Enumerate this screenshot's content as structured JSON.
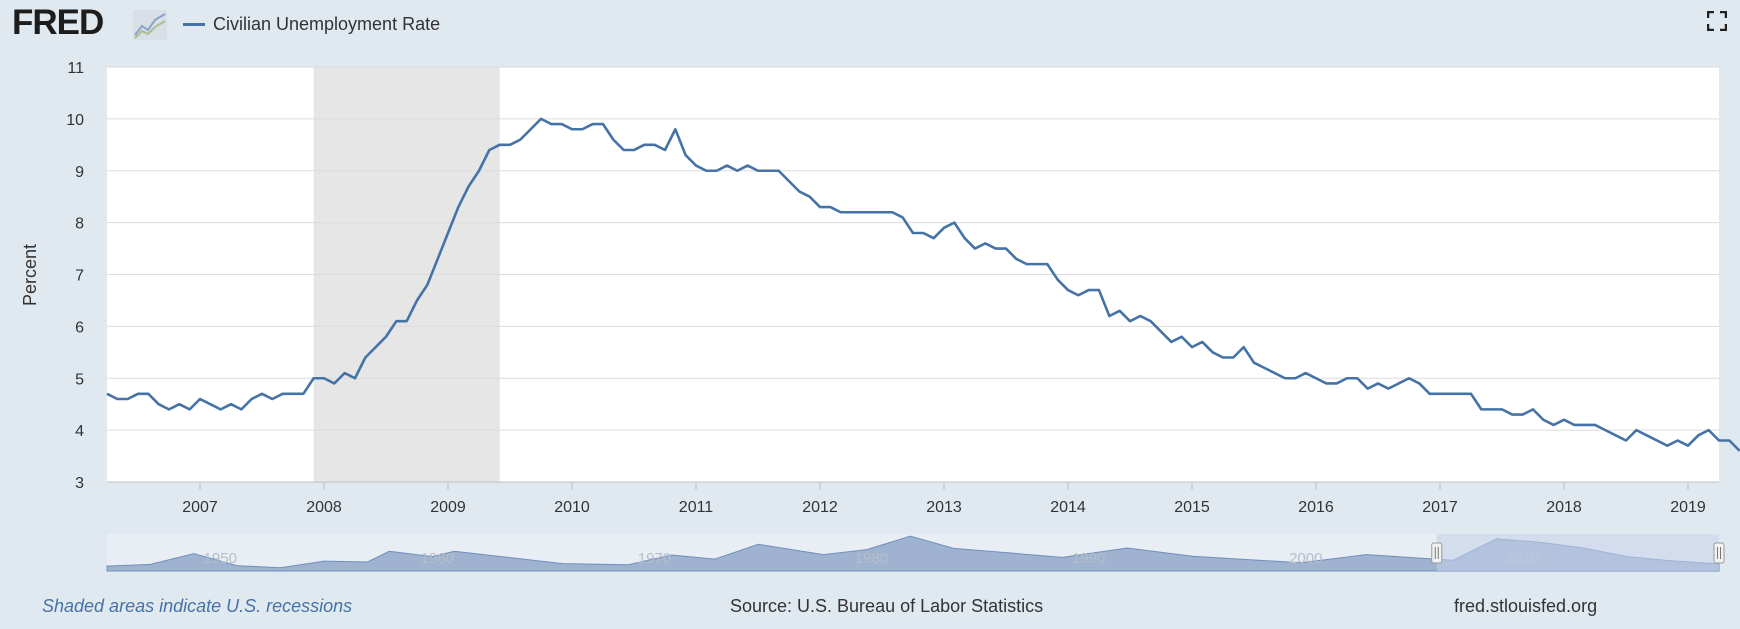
{
  "header": {
    "logo_text": "FRED",
    "legend_label": "Civilian Unemployment Rate"
  },
  "icons": {
    "logo": "fred-graph-icon",
    "fullscreen": "fullscreen-icon"
  },
  "colors": {
    "background": "#e1e9f0",
    "series_line": "#4572a7",
    "recession_shade": "#e6e6e6",
    "navigator_fill": "#9fb3d1",
    "navigator_selection": "#c2cfe8"
  },
  "footer": {
    "note": "Shaded areas indicate U.S. recessions",
    "source": "Source: U.S. Bureau of Labor Statistics",
    "site": "fred.stlouisfed.org"
  },
  "chart_data": {
    "type": "line",
    "ylabel": "Percent",
    "ylim": [
      3,
      11
    ],
    "yticks": [
      3,
      4,
      5,
      6,
      7,
      8,
      9,
      10,
      11
    ],
    "xlim": [
      "2006-04",
      "2019-04"
    ],
    "xticks": [
      "2007",
      "2008",
      "2009",
      "2010",
      "2011",
      "2012",
      "2013",
      "2014",
      "2015",
      "2016",
      "2017",
      "2018",
      "2019"
    ],
    "grid": true,
    "legend": "top-left",
    "recessions": [
      {
        "start": "2007-12",
        "end": "2009-06"
      }
    ],
    "series": [
      {
        "name": "Civilian Unemployment Rate",
        "start": "2006-04",
        "frequency": "monthly",
        "values": [
          4.7,
          4.6,
          4.6,
          4.7,
          4.7,
          4.5,
          4.4,
          4.5,
          4.4,
          4.6,
          4.5,
          4.4,
          4.5,
          4.4,
          4.6,
          4.7,
          4.6,
          4.7,
          4.7,
          4.7,
          5.0,
          5.0,
          4.9,
          5.1,
          5.0,
          5.4,
          5.6,
          5.8,
          6.1,
          6.1,
          6.5,
          6.8,
          7.3,
          7.8,
          8.3,
          8.7,
          9.0,
          9.4,
          9.5,
          9.5,
          9.6,
          9.8,
          10.0,
          9.9,
          9.9,
          9.8,
          9.8,
          9.9,
          9.9,
          9.6,
          9.4,
          9.4,
          9.5,
          9.5,
          9.4,
          9.8,
          9.3,
          9.1,
          9.0,
          9.0,
          9.1,
          9.0,
          9.1,
          9.0,
          9.0,
          9.0,
          8.8,
          8.6,
          8.5,
          8.3,
          8.3,
          8.2,
          8.2,
          8.2,
          8.2,
          8.2,
          8.2,
          8.1,
          7.8,
          7.8,
          7.7,
          7.9,
          8.0,
          7.7,
          7.5,
          7.6,
          7.5,
          7.5,
          7.3,
          7.2,
          7.2,
          7.2,
          6.9,
          6.7,
          6.6,
          6.7,
          6.7,
          6.2,
          6.3,
          6.1,
          6.2,
          6.1,
          5.9,
          5.7,
          5.8,
          5.6,
          5.7,
          5.5,
          5.4,
          5.4,
          5.6,
          5.3,
          5.2,
          5.1,
          5.0,
          5.0,
          5.1,
          5.0,
          4.9,
          4.9,
          5.0,
          5.0,
          4.8,
          4.9,
          4.8,
          4.9,
          5.0,
          4.9,
          4.7,
          4.7,
          4.7,
          4.7,
          4.7,
          4.4,
          4.4,
          4.4,
          4.3,
          4.3,
          4.4,
          4.2,
          4.1,
          4.2,
          4.1,
          4.1,
          4.1,
          4.0,
          3.9,
          3.8,
          4.0,
          3.9,
          3.8,
          3.7,
          3.8,
          3.7,
          3.9,
          4.0,
          3.8,
          3.8,
          3.6
        ]
      }
    ],
    "navigator": {
      "xlim": [
        "1945",
        "2019-04"
      ],
      "labels": [
        "1950",
        "1960",
        "1970",
        "1980",
        "1990",
        "2000",
        "2010"
      ],
      "selected": [
        "2006-04",
        "2019-04"
      ]
    }
  }
}
